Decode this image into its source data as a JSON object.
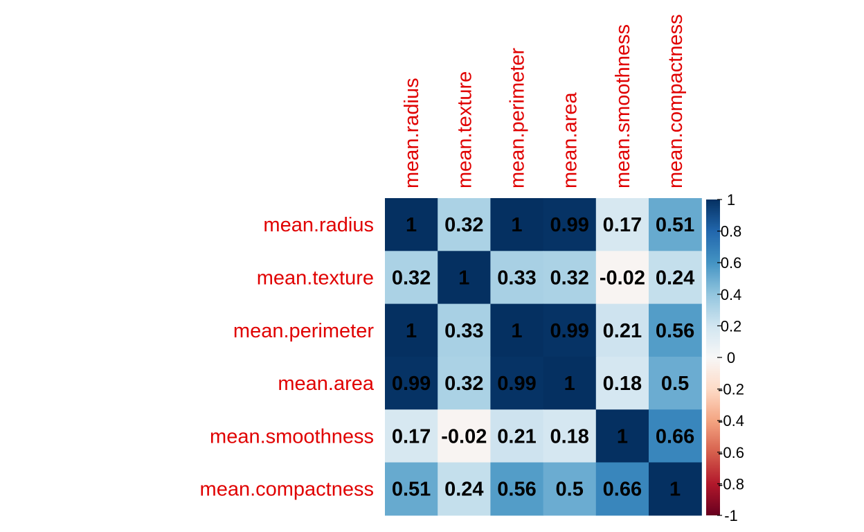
{
  "chart_data": {
    "type": "heatmap",
    "title": "",
    "xlabel": "",
    "ylabel": "",
    "row_labels": [
      "mean.radius",
      "mean.texture",
      "mean.perimeter",
      "mean.area",
      "mean.smoothness",
      "mean.compactness"
    ],
    "col_labels": [
      "mean.radius",
      "mean.texture",
      "mean.perimeter",
      "mean.area",
      "mean.smoothness",
      "mean.compactness"
    ],
    "values": [
      [
        1,
        0.32,
        1,
        0.99,
        0.17,
        0.51
      ],
      [
        0.32,
        1,
        0.33,
        0.32,
        -0.02,
        0.24
      ],
      [
        1,
        0.33,
        1,
        0.99,
        0.21,
        0.56
      ],
      [
        0.99,
        0.32,
        0.99,
        1,
        0.18,
        0.5
      ],
      [
        0.17,
        -0.02,
        0.21,
        0.18,
        1,
        0.66
      ],
      [
        0.51,
        0.24,
        0.56,
        0.5,
        0.66,
        1
      ]
    ],
    "value_labels": [
      [
        "1",
        "0.32",
        "1",
        "0.99",
        "0.17",
        "0.51"
      ],
      [
        "0.32",
        "1",
        "0.33",
        "0.32",
        "-0.02",
        "0.24"
      ],
      [
        "1",
        "0.33",
        "1",
        "0.99",
        "0.21",
        "0.56"
      ],
      [
        "0.99",
        "0.32",
        "0.99",
        "1",
        "0.18",
        "0.5"
      ],
      [
        "0.17",
        "-0.02",
        "0.21",
        "0.18",
        "1",
        "0.66"
      ],
      [
        "0.51",
        "0.24",
        "0.56",
        "0.5",
        "0.66",
        "1"
      ]
    ],
    "colorbar": {
      "range": [
        -1,
        1
      ],
      "ticks": [
        1,
        0.8,
        0.6,
        0.4,
        0.2,
        0,
        -0.2,
        -0.4,
        -0.6,
        -0.8,
        -1
      ],
      "tick_labels": [
        "1",
        "0.8",
        "0.6",
        "0.4",
        "0.2",
        "0",
        "-0.2",
        "-0.4",
        "-0.6",
        "-0.8",
        "-1"
      ],
      "palette_positive": [
        "#F7F7F7",
        "#D1E5F0",
        "#92C5DE",
        "#4393C3",
        "#2166AC",
        "#053061"
      ],
      "palette_negative": [
        "#F7F7F7",
        "#FDDBC7",
        "#F4A582",
        "#D6604D",
        "#B2182B",
        "#67001F"
      ]
    },
    "label_color": "#e00000",
    "value_text_color": "#000000"
  }
}
